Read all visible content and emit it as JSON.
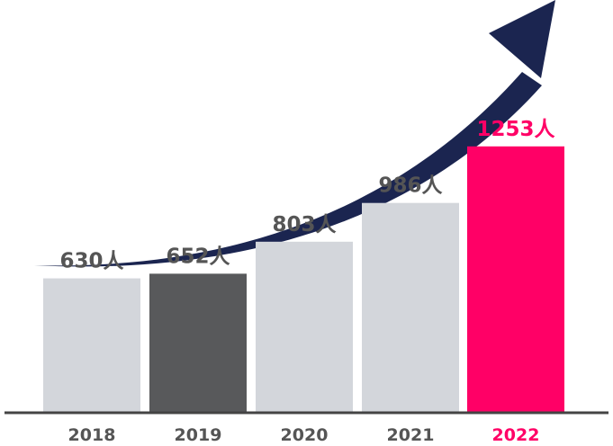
{
  "chart_data": {
    "type": "bar",
    "categories": [
      "2018",
      "2019",
      "2020",
      "2021",
      "2022"
    ],
    "values": [
      630,
      652,
      803,
      986,
      1253
    ],
    "value_labels": [
      "630人",
      "652人",
      "803人",
      "986人",
      "1253人"
    ],
    "ylim": [
      0,
      1500
    ],
    "grid": false,
    "legend": "none",
    "colors": {
      "default_bar": "#d3d6db",
      "highlight_2019": "#58595b",
      "highlight_2022": "#ff0066",
      "label_text": "#555555",
      "highlight_text": "#ff0066",
      "baseline": "#444444",
      "arrow": "#1b2550"
    },
    "bar_colors": [
      "#d3d6db",
      "#58595b",
      "#d3d6db",
      "#d3d6db",
      "#ff0066"
    ],
    "label_colors": [
      "#555555",
      "#555555",
      "#555555",
      "#555555",
      "#ff0066"
    ],
    "decoration": "trend-arrow"
  }
}
